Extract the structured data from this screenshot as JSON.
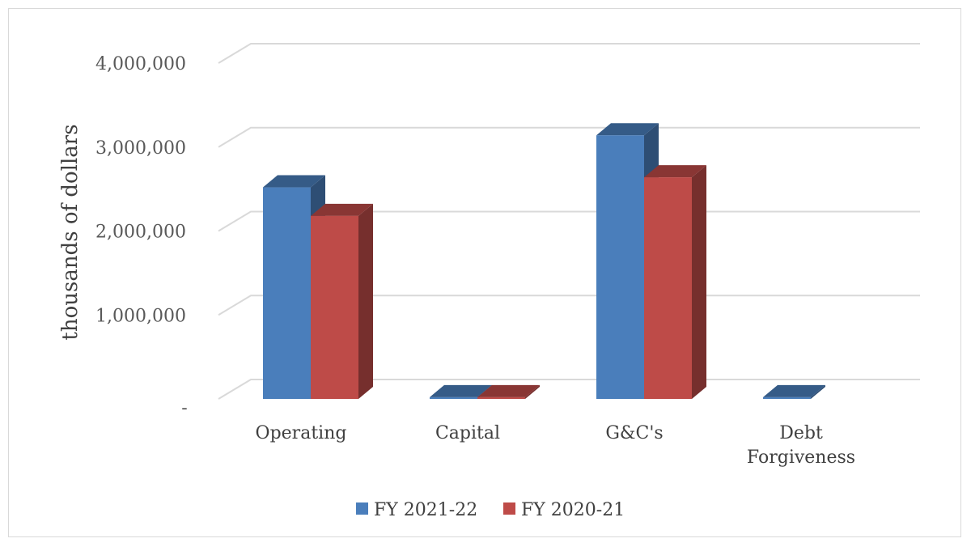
{
  "chart_data": {
    "type": "bar",
    "style": "3d-clustered-column",
    "categories": [
      "Operating",
      "Capital",
      "G&C's",
      "Debt Forgiveness"
    ],
    "category_lines": [
      [
        "Operating"
      ],
      [
        "Capital"
      ],
      [
        "G&C's"
      ],
      [
        "Debt",
        "Forgiveness"
      ]
    ],
    "series": [
      {
        "name": "FY 2021-22",
        "color": "#4a7ebb",
        "values": [
          2520000,
          20000,
          3140000,
          20000
        ]
      },
      {
        "name": "FY 2020-21",
        "color": "#be4b48",
        "values": [
          2180000,
          20000,
          2640000,
          0
        ]
      }
    ],
    "title": "",
    "xlabel": "",
    "ylabel": "thousands of dollars",
    "ylim": [
      0,
      4000000
    ],
    "yticks": [
      {
        "value": 0,
        "label": "-"
      },
      {
        "value": 1000000,
        "label": "1,000,000"
      },
      {
        "value": 2000000,
        "label": "2,000,000"
      },
      {
        "value": 3000000,
        "label": "3,000,000"
      },
      {
        "value": 4000000,
        "label": "4,000,000"
      }
    ],
    "grid": true,
    "legend": "bottom-center"
  }
}
